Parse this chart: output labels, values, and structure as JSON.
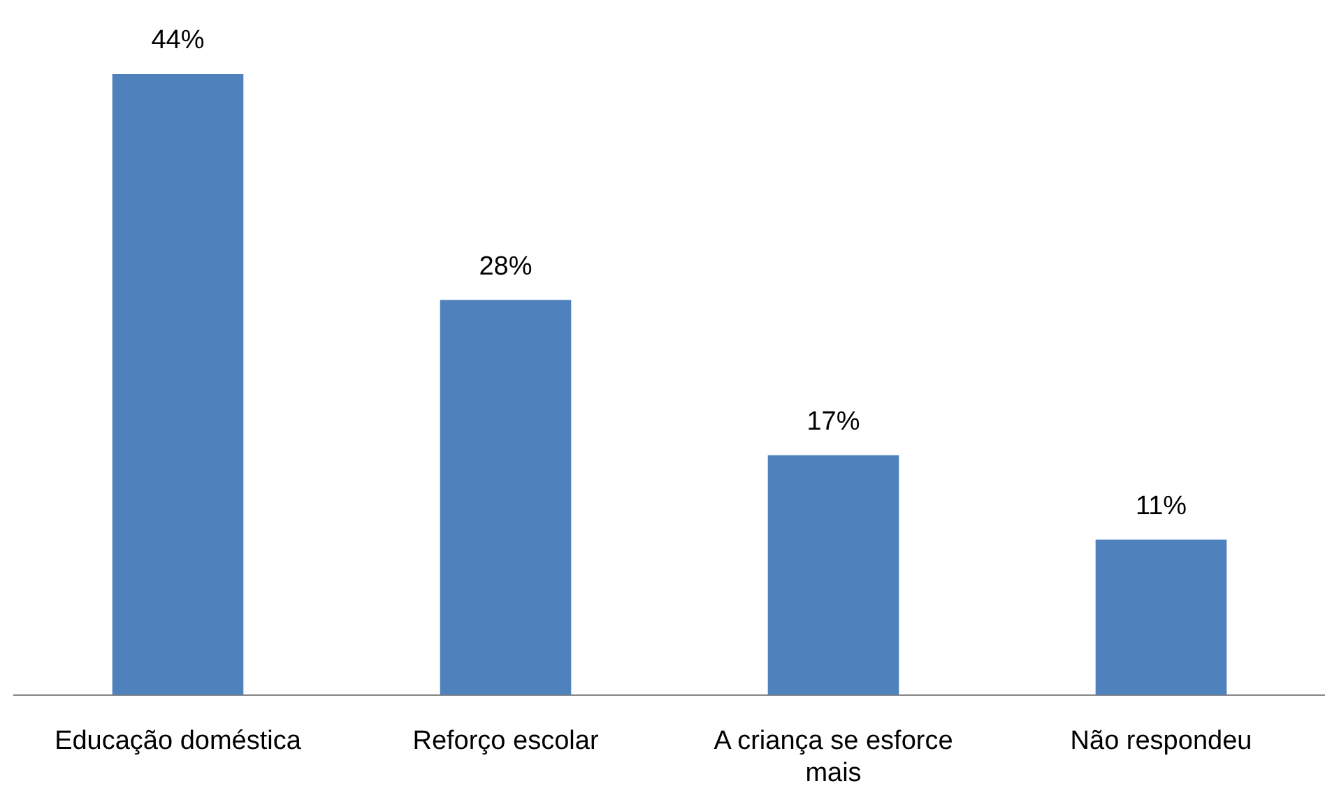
{
  "chart_data": {
    "type": "bar",
    "categories": [
      "Educação doméstica",
      "Reforço escolar",
      "A criança se esforce mais",
      "Não respondeu"
    ],
    "values": [
      44,
      28,
      17,
      11
    ],
    "value_labels": [
      "44%",
      "28%",
      "17%",
      "11%"
    ],
    "color": "#4f81bd",
    "legend": false
  }
}
